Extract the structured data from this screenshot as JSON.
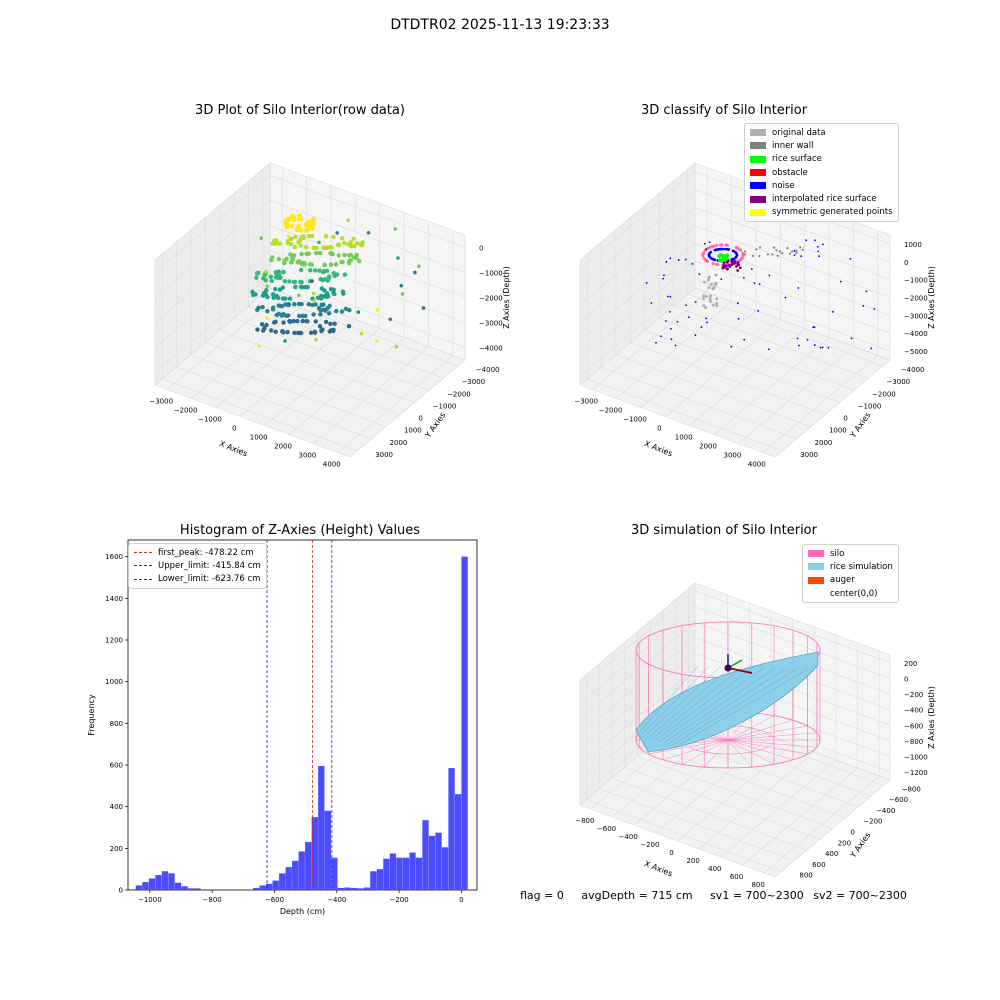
{
  "figure_title": "DTDTR02 2025-11-13 19:23:33",
  "status": {
    "flag": "flag = 0",
    "avg_depth": "avgDepth = 715 cm",
    "sv1": "sv1 = 700~2300",
    "sv2": "sv2 = 700~2300"
  },
  "colors": {
    "hist_bar": "#4b4bff",
    "peak_line": "#e02020",
    "limit_line": "#2020c0",
    "silo": "#ff69b4",
    "rice": "#87ceeb",
    "auger": "#ff4500"
  },
  "chart_data": [
    {
      "type": "scatter",
      "subtype": "3d",
      "title": "3D Plot of Silo Interior(row data)",
      "xlabel": "X Axies",
      "ylabel": "Y Axies",
      "zlabel": "Z Axies (Depth)",
      "x_ticks": [
        "−3000",
        "−2000",
        "−1000",
        "0",
        "1000",
        "2000",
        "3000",
        "4000"
      ],
      "y_ticks": [
        "3000",
        "2000",
        "1000",
        "0",
        "−1000",
        "−2000",
        "−3000",
        "−4000"
      ],
      "z_ticks": [
        "0",
        "−1000",
        "−2000",
        "−3000",
        "−4000"
      ],
      "xlim": [
        -3000,
        4000
      ],
      "ylim": [
        -4000,
        3000
      ],
      "zlim": [
        -4300,
        300
      ],
      "colormap": "viridis"
    },
    {
      "type": "scatter",
      "subtype": "3d",
      "title": "3D classify of Silo Interior",
      "xlabel": "X Axies",
      "ylabel": "Y Axies",
      "zlabel": "Z Axies (Depth)",
      "x_ticks": [
        "−3000",
        "−2000",
        "−1000",
        "0",
        "1000",
        "2000",
        "3000",
        "4000"
      ],
      "y_ticks": [
        "3000",
        "2000",
        "1000",
        "0",
        "−1000",
        "−2000",
        "−3000",
        "−4000"
      ],
      "z_ticks": [
        "1000",
        "0",
        "−1000",
        "−2000",
        "−3000",
        "−4000",
        "−5000"
      ],
      "xlim": [
        -3000,
        4000
      ],
      "ylim": [
        -4000,
        3000
      ],
      "zlim": [
        -5500,
        1200
      ],
      "legend": [
        {
          "label": "original data",
          "color": "#b0b0b0"
        },
        {
          "label": "inner wall",
          "color": "#808080"
        },
        {
          "label": "rice surface",
          "color": "#00ff00"
        },
        {
          "label": "obstacle",
          "color": "#ff0000"
        },
        {
          "label": "noise",
          "color": "#0000ff"
        },
        {
          "label": "interpolated rice surface",
          "color": "#800080"
        },
        {
          "label": "symmetric generated points",
          "color": "#ffff00"
        }
      ]
    },
    {
      "type": "bar",
      "subtype": "histogram",
      "title": "Histogram of Z-Axies (Height) Values",
      "xlabel": "Depth (cm)",
      "ylabel": "Frequency",
      "xlim": [
        -1070,
        50
      ],
      "ylim": [
        0,
        1680
      ],
      "x_ticks": [
        -1000,
        -800,
        -600,
        -400,
        -200,
        0
      ],
      "x_tick_labels": [
        "−1000",
        "−800",
        "−600",
        "−400",
        "−200",
        "0"
      ],
      "y_ticks": [
        0,
        200,
        400,
        600,
        800,
        1000,
        1200,
        1400,
        1600
      ],
      "bin_start": -1045,
      "bin_width": 20.9,
      "values": [
        22,
        38,
        55,
        72,
        90,
        80,
        35,
        18,
        8,
        8,
        0,
        0,
        0,
        0,
        0,
        0,
        0,
        3,
        10,
        22,
        30,
        45,
        80,
        110,
        140,
        185,
        230,
        350,
        595,
        380,
        155,
        10,
        12,
        10,
        8,
        12,
        90,
        100,
        150,
        175,
        155,
        155,
        180,
        155,
        335,
        260,
        275,
        205,
        585,
        460,
        1600
      ],
      "lines": [
        {
          "label": "first_peak: -478.22 cm",
          "x": -478.22,
          "color": "#e02020"
        },
        {
          "label": "Upper_limit: -415.84 cm",
          "x": -415.84,
          "color": "#2020c0"
        },
        {
          "label": "Lower_limit: -623.76 cm",
          "x": -623.76,
          "color": "#2020c0"
        }
      ],
      "legend_position": "upper-left"
    },
    {
      "type": "surface",
      "subtype": "3d",
      "title": "3D simulation of Silo Interior",
      "xlabel": "X Axies",
      "ylabel": "Y Axies",
      "zlabel": "Z Axies (Depth)",
      "x_ticks": [
        "−800",
        "−600",
        "−400",
        "−200",
        "0",
        "200",
        "400",
        "600",
        "800"
      ],
      "y_ticks": [
        "800",
        "600",
        "400",
        "200",
        "0",
        "−200",
        "−400",
        "−600",
        "−800"
      ],
      "z_ticks": [
        "200",
        "0",
        "−200",
        "−400",
        "−600",
        "−800",
        "−1000",
        "−1200"
      ],
      "xlim": [
        -800,
        800
      ],
      "ylim": [
        -800,
        800
      ],
      "zlim": [
        -1300,
        300
      ],
      "legend": [
        {
          "label": "silo",
          "color": "#ff69b4"
        },
        {
          "label": "rice simulation",
          "color": "#87ceeb"
        },
        {
          "label": "auger",
          "color": "#ff4500"
        },
        {
          "label": "center(0,0)",
          "color": ""
        }
      ]
    }
  ]
}
